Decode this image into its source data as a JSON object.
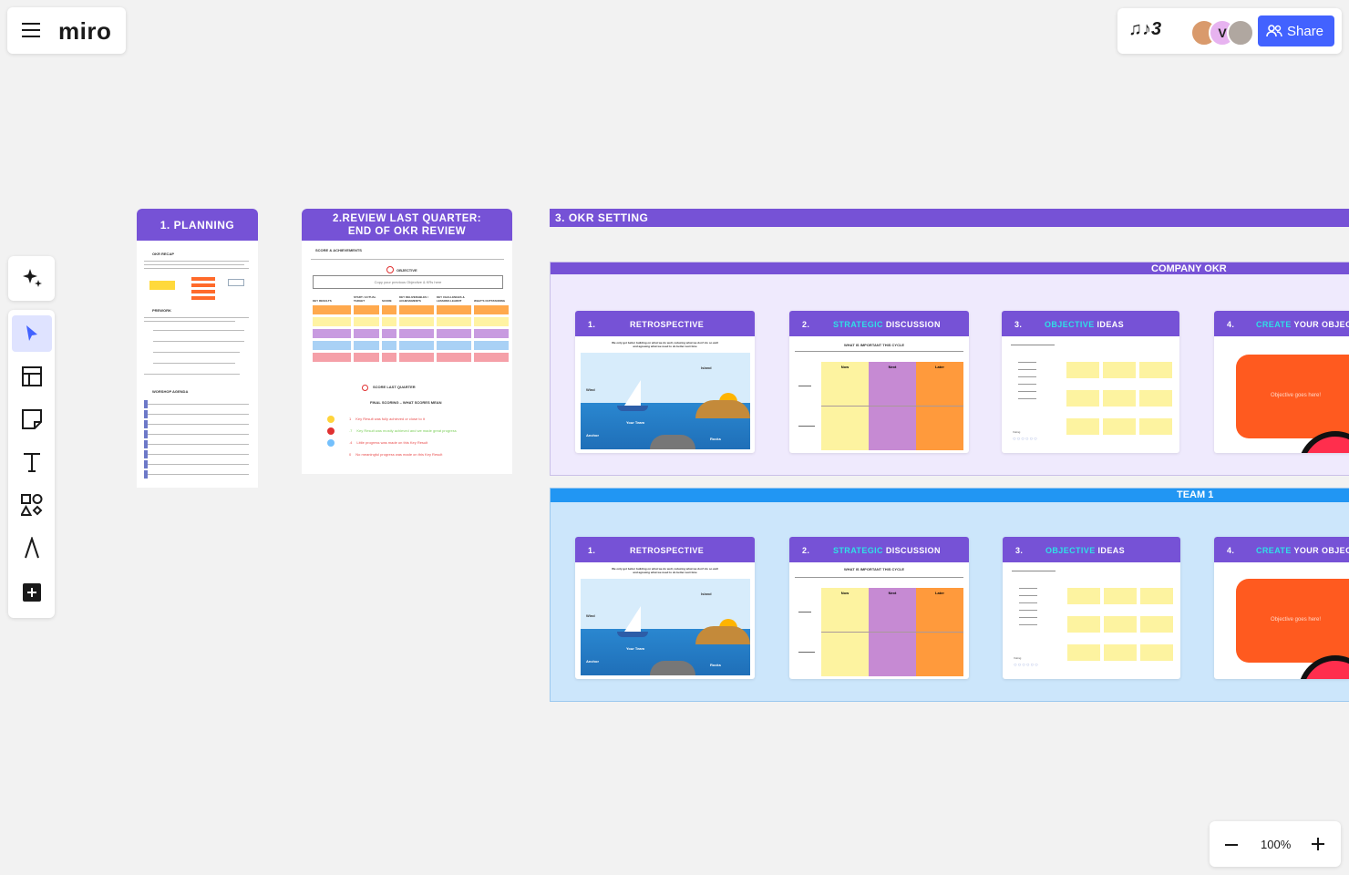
{
  "app": {
    "logo": "miro",
    "menu_icon": "hamburger-icon"
  },
  "top_right": {
    "board_badge": "♫♪3",
    "avatar_letter": "V",
    "share_label": "Share",
    "colors": {
      "share": "#4262ff"
    }
  },
  "left_toolbar": {
    "tools": [
      "ai-sparkle-icon",
      "select-cursor-icon",
      "templates-icon",
      "sticky-note-icon",
      "text-icon",
      "shapes-icon",
      "pen-icon",
      "add-more-icon"
    ]
  },
  "frames": {
    "planning": {
      "title": "1. PLANNING",
      "okr_recap": "OKR RECAP",
      "prework": "PREWORK",
      "agenda": "WORSHOP AGENDA"
    },
    "review": {
      "title": "2.REVIEW LAST QUARTER:\nEND OF OKR REVIEW",
      "score_achievements": "SCORE & ACHIEVEMENTS",
      "objective": "OBJECTIVE",
      "objective_placeholder": "Copy your previous Objective & KRs here",
      "columns": [
        "KEY RESULTS",
        "START / ACTUAL TARGET",
        "SCORE",
        "KEY DELIVERABLES / ACHIEVEMENTS",
        "KEY CHALLENGES & LESSONS LEARNT",
        "WHAT'S OUTSTANDING"
      ],
      "score_last_quarter": "SCORE LAST QUARTER",
      "final_scoring": "FINAL SCORING – WHAT SCORES MEAN",
      "scores": [
        {
          "n": "1",
          "text": "Key Result was fully achieved or close to it",
          "color": "#e94d4d"
        },
        {
          "n": ".7",
          "text": "Key Result was mostly achieved and we made great progress",
          "color": "#7ccf5a"
        },
        {
          "n": ".4",
          "text": "Little progress was made on this Key Result",
          "color": "#e94d4d"
        },
        {
          "n": "0",
          "text": "No meaningful progress was made on this Key Result",
          "color": "#e94d4d"
        }
      ]
    },
    "okr_setting": {
      "title": "3. OKR SETTING",
      "sections": [
        {
          "label": "COMPANY OKR",
          "cards": [
            {
              "num": "1.",
              "title": "RETROSPECTIVE",
              "sub": "We only get better building on what we do well, reducing what we don't do so well and agreeing what we need to do better next time",
              "labels": [
                "Island",
                "Wind",
                "Your Team",
                "Anchor",
                "Rocks"
              ]
            },
            {
              "num": "2.",
              "title_hl": "STRATEGIC",
              "title": " DISCUSSION",
              "sub": "WHAT IS IMPORTANT THIS CYCLE",
              "cols": [
                "Now",
                "Next",
                "Later"
              ]
            },
            {
              "num": "3.",
              "title_hl": "OBJECTIVE",
              "title": " IDEAS",
              "sub": "Voting"
            },
            {
              "num": "4.",
              "title_hl": "CREATE",
              "title": " YOUR OBJEC",
              "objective": "Objective goes here!"
            }
          ]
        },
        {
          "label": "TEAM 1",
          "cards": [
            {
              "num": "1.",
              "title": "RETROSPECTIVE",
              "sub": "We only get better building on what we do well, reducing what we don't do so well and agreeing what we need to do better next time",
              "labels": [
                "Island",
                "Wind",
                "Your Team",
                "Anchor",
                "Rocks"
              ]
            },
            {
              "num": "2.",
              "title_hl": "STRATEGIC",
              "title": " DISCUSSION",
              "sub": "WHAT IS IMPORTANT THIS CYCLE",
              "cols": [
                "Now",
                "Next",
                "Later"
              ]
            },
            {
              "num": "3.",
              "title_hl": "OBJECTIVE",
              "title": " IDEAS",
              "sub": "Voting"
            },
            {
              "num": "4.",
              "title_hl": "CREATE",
              "title": " YOUR OBJEC",
              "objective": "Objective goes here!"
            }
          ]
        }
      ]
    }
  },
  "zoom": {
    "value": "100%"
  },
  "colors": {
    "accent": "#7652d6",
    "company_bg": "#efeafd",
    "team_bg": "#cce6fb",
    "team_bar": "#2196f3",
    "objective": "#ff5a1f"
  }
}
